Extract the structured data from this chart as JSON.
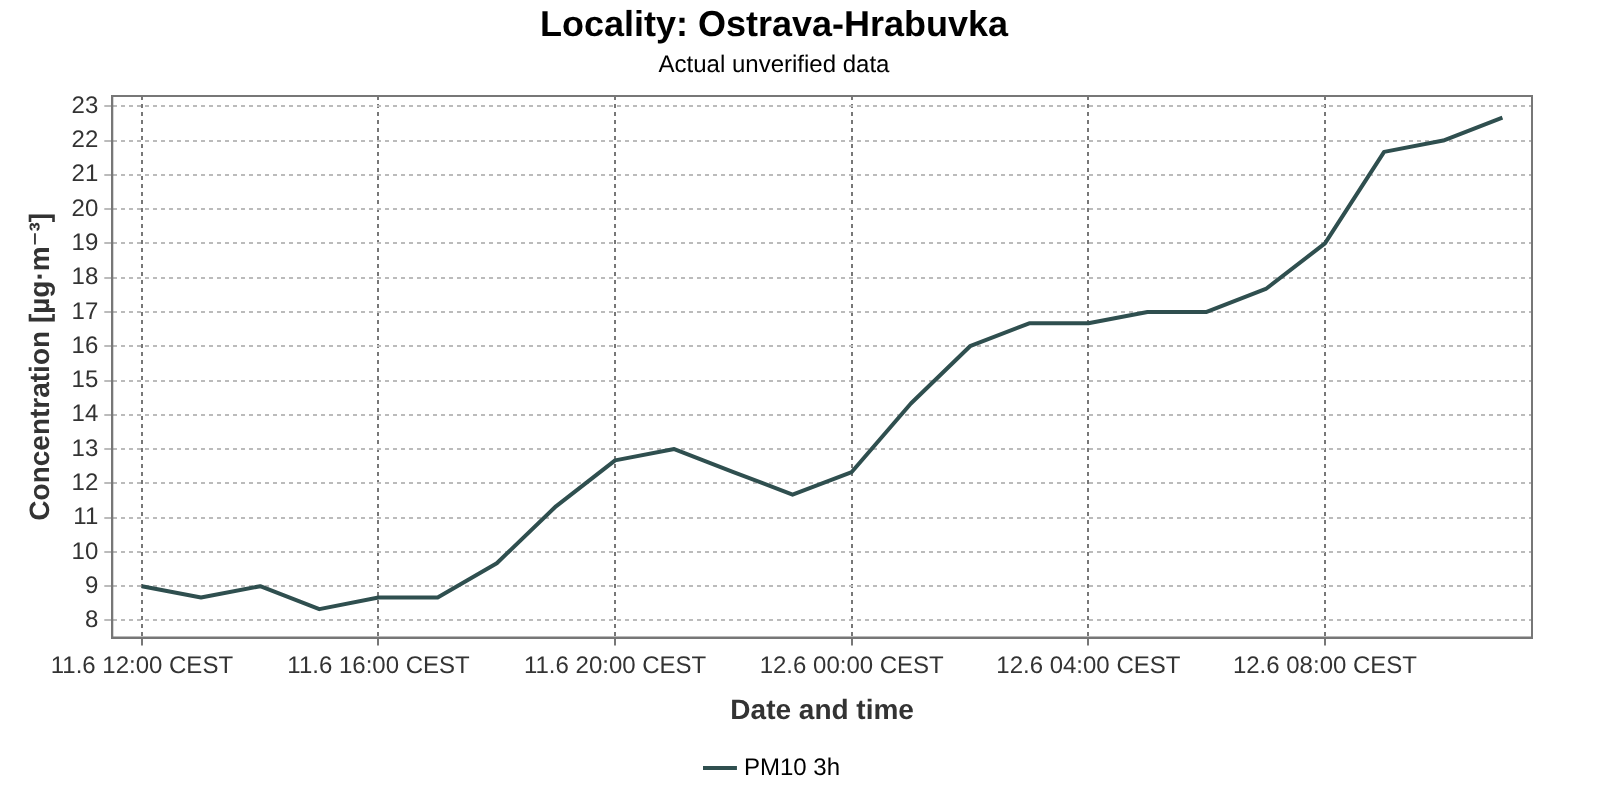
{
  "chart_data": {
    "type": "line",
    "title": "Locality: Ostrava-Hrabuvka",
    "subtitle": "Actual unverified data",
    "xlabel": "Date and time",
    "ylabel": "Concentration [µg·m⁻³]",
    "categories": [
      "11.6 12:00 CEST",
      null,
      null,
      null,
      "11.6 16:00 CEST",
      null,
      null,
      null,
      "11.6 20:00 CEST",
      null,
      null,
      null,
      "12.6 00:00 CEST",
      null,
      null,
      null,
      "12.6 04:00 CEST",
      null,
      null,
      null,
      "12.6 08:00 CEST",
      null,
      null,
      null
    ],
    "series": [
      {
        "name": "PM10 3h",
        "color": "#2f4f4f",
        "values": [
          9.0,
          8.67,
          9.0,
          8.33,
          8.67,
          8.67,
          9.67,
          11.33,
          12.67,
          13.0,
          12.33,
          11.67,
          12.33,
          14.33,
          16.0,
          16.67,
          16.67,
          17.0,
          17.0,
          17.67,
          19.0,
          21.67,
          22.0,
          22.67
        ]
      }
    ],
    "ylim": [
      7.5,
      23.3
    ],
    "yticks": [
      8,
      9,
      10,
      11,
      12,
      13,
      14,
      15,
      16,
      17,
      18,
      19,
      20,
      21,
      22,
      23
    ],
    "grid": true,
    "legend": "bottom",
    "marker": "none",
    "line_style": "solid"
  }
}
